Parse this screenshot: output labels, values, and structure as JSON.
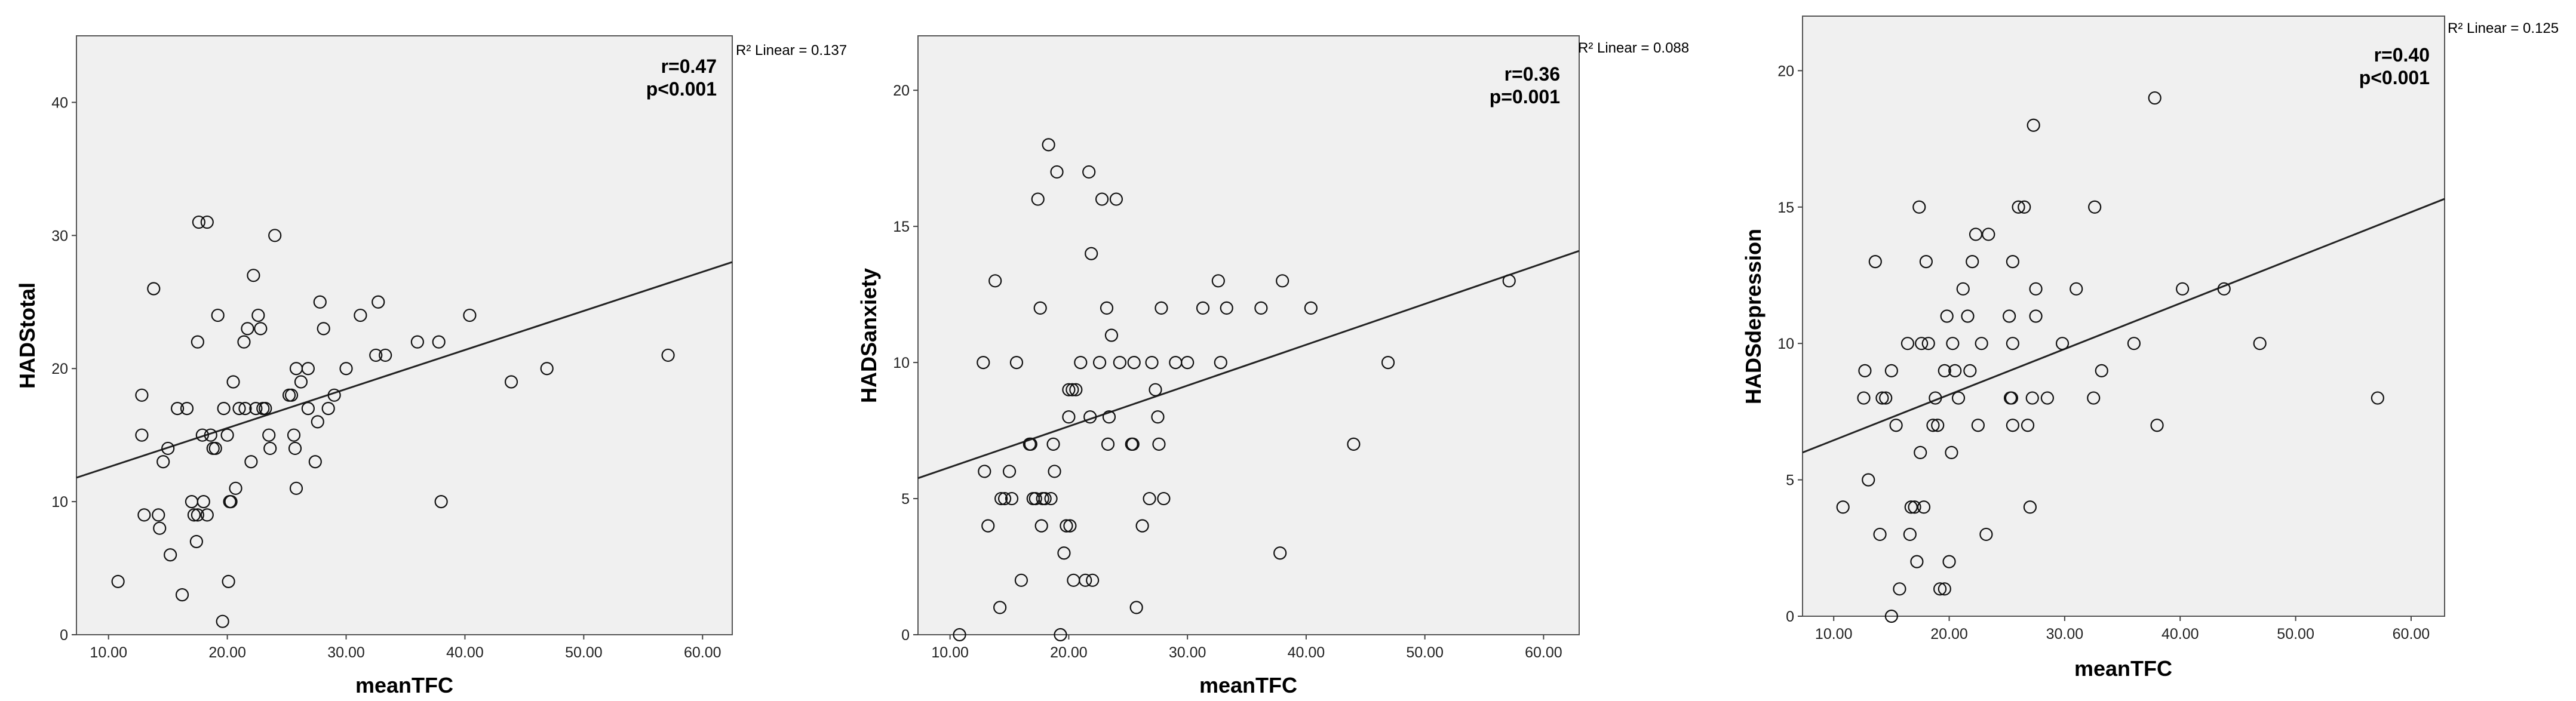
{
  "chart_data": [
    {
      "type": "scatter",
      "xlabel": "meanTFC",
      "ylabel": "HADStotal",
      "xlim": [
        7.3,
        62.5
      ],
      "ylim": [
        0,
        45
      ],
      "xticks": [
        10,
        20,
        30,
        40,
        50,
        60
      ],
      "xtick_labels": [
        "10.00",
        "20.00",
        "30.00",
        "40.00",
        "50.00",
        "60.00"
      ],
      "yticks": [
        0,
        10,
        20,
        30,
        40
      ],
      "ytick_labels": [
        "0",
        "10",
        "20",
        "30",
        "40"
      ],
      "fit_line": {
        "x": [
          7.3,
          62.5
        ],
        "y": [
          11.8,
          28.0
        ],
        "label": "R² Linear = 0.137"
      },
      "annotation": [
        "r=0.47",
        "p<0.001"
      ],
      "grid": false,
      "points": [
        [
          10.8,
          4
        ],
        [
          12.8,
          15
        ],
        [
          12.8,
          18
        ],
        [
          13.0,
          9
        ],
        [
          13.8,
          26
        ],
        [
          14.2,
          9
        ],
        [
          14.3,
          8
        ],
        [
          14.6,
          13
        ],
        [
          15.0,
          14
        ],
        [
          15.2,
          6
        ],
        [
          15.8,
          17
        ],
        [
          16.2,
          3
        ],
        [
          16.6,
          17
        ],
        [
          17.0,
          10
        ],
        [
          17.2,
          9
        ],
        [
          17.4,
          7
        ],
        [
          17.5,
          9
        ],
        [
          17.5,
          22
        ],
        [
          17.6,
          31
        ],
        [
          17.9,
          15
        ],
        [
          18.0,
          10
        ],
        [
          18.3,
          31
        ],
        [
          18.3,
          9
        ],
        [
          18.6,
          15
        ],
        [
          18.8,
          14
        ],
        [
          19.0,
          14
        ],
        [
          19.2,
          24
        ],
        [
          19.6,
          1
        ],
        [
          19.7,
          17
        ],
        [
          20.0,
          15
        ],
        [
          20.1,
          4
        ],
        [
          20.2,
          10
        ],
        [
          20.3,
          10
        ],
        [
          20.5,
          19
        ],
        [
          20.7,
          11
        ],
        [
          21.0,
          17
        ],
        [
          21.4,
          22
        ],
        [
          21.5,
          17
        ],
        [
          21.7,
          23
        ],
        [
          22.0,
          13
        ],
        [
          22.2,
          27
        ],
        [
          22.4,
          17
        ],
        [
          22.6,
          24
        ],
        [
          22.8,
          23
        ],
        [
          23.0,
          17
        ],
        [
          23.2,
          17
        ],
        [
          23.5,
          15
        ],
        [
          23.6,
          14
        ],
        [
          24.0,
          30
        ],
        [
          25.2,
          18
        ],
        [
          25.4,
          18
        ],
        [
          25.6,
          15
        ],
        [
          25.7,
          14
        ],
        [
          25.8,
          20
        ],
        [
          25.8,
          11
        ],
        [
          26.2,
          19
        ],
        [
          26.8,
          17
        ],
        [
          26.8,
          20
        ],
        [
          27.4,
          13
        ],
        [
          27.6,
          16
        ],
        [
          27.8,
          25
        ],
        [
          28.1,
          23
        ],
        [
          28.5,
          17
        ],
        [
          29.0,
          18
        ],
        [
          30.0,
          20
        ],
        [
          31.2,
          24
        ],
        [
          32.5,
          21
        ],
        [
          32.7,
          25
        ],
        [
          33.3,
          21
        ],
        [
          36.0,
          22
        ],
        [
          37.8,
          22
        ],
        [
          38.0,
          10
        ],
        [
          40.4,
          24
        ],
        [
          43.9,
          19
        ],
        [
          46.9,
          20
        ],
        [
          57.1,
          21
        ]
      ]
    },
    {
      "type": "scatter",
      "xlabel": "meanTFC",
      "ylabel": "HADSanxiety",
      "xlim": [
        7.3,
        63.0
      ],
      "ylim": [
        0,
        22
      ],
      "xticks": [
        10,
        20,
        30,
        40,
        50,
        60
      ],
      "xtick_labels": [
        "10.00",
        "20.00",
        "30.00",
        "40.00",
        "50.00",
        "60.00"
      ],
      "yticks": [
        0,
        5,
        10,
        15,
        20
      ],
      "ytick_labels": [
        "0",
        "5",
        "10",
        "15",
        "20"
      ],
      "fit_line": {
        "x": [
          7.3,
          63.0
        ],
        "y": [
          5.75,
          14.1
        ],
        "label": "R² Linear = 0.088"
      },
      "annotation": [
        "r=0.36",
        "p=0.001"
      ],
      "grid": false,
      "points": [
        [
          10.8,
          0
        ],
        [
          12.8,
          10
        ],
        [
          12.9,
          6
        ],
        [
          13.2,
          4
        ],
        [
          13.8,
          13
        ],
        [
          14.2,
          1
        ],
        [
          14.3,
          5
        ],
        [
          14.6,
          5
        ],
        [
          15.0,
          6
        ],
        [
          15.2,
          5
        ],
        [
          15.6,
          10
        ],
        [
          16.0,
          2
        ],
        [
          16.7,
          7
        ],
        [
          16.8,
          7
        ],
        [
          17.0,
          5
        ],
        [
          17.2,
          5
        ],
        [
          17.4,
          16
        ],
        [
          17.6,
          12
        ],
        [
          17.7,
          4
        ],
        [
          17.8,
          5
        ],
        [
          18.0,
          5
        ],
        [
          18.3,
          18
        ],
        [
          18.5,
          5
        ],
        [
          18.7,
          7
        ],
        [
          18.8,
          6
        ],
        [
          19.0,
          17
        ],
        [
          19.3,
          0
        ],
        [
          19.6,
          3
        ],
        [
          19.8,
          4
        ],
        [
          20.0,
          8
        ],
        [
          20.0,
          9
        ],
        [
          20.1,
          4
        ],
        [
          20.3,
          9
        ],
        [
          20.4,
          2
        ],
        [
          20.6,
          9
        ],
        [
          21.0,
          10
        ],
        [
          21.4,
          2
        ],
        [
          21.7,
          17
        ],
        [
          21.8,
          8
        ],
        [
          21.9,
          14
        ],
        [
          22.0,
          2
        ],
        [
          22.6,
          10
        ],
        [
          22.8,
          16
        ],
        [
          23.2,
          12
        ],
        [
          23.3,
          7
        ],
        [
          23.4,
          8
        ],
        [
          23.6,
          11
        ],
        [
          24.0,
          16
        ],
        [
          24.3,
          10
        ],
        [
          25.3,
          7
        ],
        [
          25.4,
          7
        ],
        [
          25.5,
          10
        ],
        [
          25.7,
          1
        ],
        [
          26.2,
          4
        ],
        [
          26.8,
          5
        ],
        [
          27.0,
          10
        ],
        [
          27.3,
          9
        ],
        [
          27.5,
          8
        ],
        [
          27.6,
          7
        ],
        [
          27.8,
          12
        ],
        [
          28.0,
          5
        ],
        [
          29.0,
          10
        ],
        [
          30.0,
          10
        ],
        [
          31.3,
          12
        ],
        [
          32.6,
          13
        ],
        [
          32.8,
          10
        ],
        [
          33.3,
          12
        ],
        [
          36.2,
          12
        ],
        [
          37.8,
          3
        ],
        [
          38.0,
          13
        ],
        [
          40.4,
          12
        ],
        [
          44.0,
          7
        ],
        [
          46.9,
          10
        ],
        [
          57.1,
          13
        ]
      ]
    },
    {
      "type": "scatter",
      "xlabel": "meanTFC",
      "ylabel": "HADSdepression",
      "xlim": [
        7.3,
        62.9
      ],
      "ylim": [
        0,
        22
      ],
      "xticks": [
        10,
        20,
        30,
        40,
        50,
        60
      ],
      "xtick_labels": [
        "10.00",
        "20.00",
        "30.00",
        "40.00",
        "50.00",
        "60.00"
      ],
      "yticks": [
        0,
        5,
        10,
        15,
        20
      ],
      "ytick_labels": [
        "0",
        "5",
        "10",
        "15",
        "20"
      ],
      "fit_line": {
        "x": [
          7.3,
          62.9
        ],
        "y": [
          6.0,
          15.3
        ],
        "label": "R² Linear = 0.125"
      },
      "annotation": [
        "r=0.40",
        "p<0.001"
      ],
      "grid": false,
      "points": [
        [
          10.8,
          4
        ],
        [
          12.6,
          8
        ],
        [
          12.7,
          9
        ],
        [
          13.0,
          5
        ],
        [
          13.6,
          13
        ],
        [
          14.0,
          3
        ],
        [
          14.2,
          8
        ],
        [
          14.5,
          8
        ],
        [
          15.0,
          9
        ],
        [
          15.0,
          0
        ],
        [
          15.4,
          7
        ],
        [
          15.7,
          1
        ],
        [
          16.4,
          10
        ],
        [
          16.6,
          3
        ],
        [
          16.7,
          4
        ],
        [
          17.0,
          4
        ],
        [
          17.2,
          2
        ],
        [
          17.4,
          15
        ],
        [
          17.5,
          6
        ],
        [
          17.6,
          10
        ],
        [
          17.8,
          4
        ],
        [
          18.0,
          13
        ],
        [
          18.2,
          10
        ],
        [
          18.6,
          7
        ],
        [
          18.8,
          8
        ],
        [
          19.0,
          7
        ],
        [
          19.2,
          1
        ],
        [
          19.6,
          9
        ],
        [
          19.6,
          1
        ],
        [
          19.8,
          11
        ],
        [
          20.0,
          2
        ],
        [
          20.2,
          6
        ],
        [
          20.3,
          10
        ],
        [
          20.5,
          9
        ],
        [
          20.8,
          8
        ],
        [
          21.2,
          12
        ],
        [
          21.6,
          11
        ],
        [
          21.8,
          9
        ],
        [
          22.0,
          13
        ],
        [
          22.3,
          14
        ],
        [
          22.5,
          7
        ],
        [
          22.8,
          10
        ],
        [
          23.2,
          3
        ],
        [
          23.4,
          14
        ],
        [
          25.2,
          11
        ],
        [
          25.3,
          8
        ],
        [
          25.4,
          8
        ],
        [
          25.5,
          13
        ],
        [
          25.5,
          10
        ],
        [
          25.5,
          7
        ],
        [
          26.0,
          15
        ],
        [
          26.5,
          15
        ],
        [
          26.8,
          7
        ],
        [
          27.0,
          4
        ],
        [
          27.2,
          8
        ],
        [
          27.3,
          18
        ],
        [
          27.5,
          11
        ],
        [
          27.5,
          12
        ],
        [
          28.5,
          8
        ],
        [
          29.8,
          10
        ],
        [
          31.0,
          12
        ],
        [
          32.5,
          8
        ],
        [
          32.6,
          15
        ],
        [
          33.2,
          9
        ],
        [
          36.0,
          10
        ],
        [
          37.8,
          19
        ],
        [
          38.0,
          7
        ],
        [
          40.2,
          12
        ],
        [
          43.8,
          12
        ],
        [
          46.9,
          10
        ],
        [
          57.1,
          8
        ]
      ]
    }
  ]
}
